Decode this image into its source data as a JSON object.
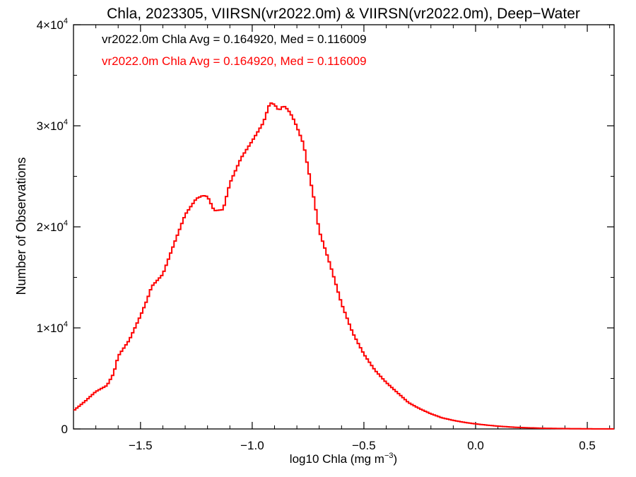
{
  "chart_data": {
    "type": "line",
    "title": "Chla, 2023305, VIIRSN(vr2022.0m) & VIIRSN(vr2022.0m), Deep−Water",
    "xlabel": "log10 Chla (mg m",
    "xlabel_sup": "−3",
    "xlabel_tail": ")",
    "ylabel": "Number of Observations",
    "xlim": [
      -1.8,
      0.62
    ],
    "ylim": [
      0,
      40000
    ],
    "grid": false,
    "x_ticks": [
      {
        "value": -1.5,
        "label": "−1.5"
      },
      {
        "value": -1.0,
        "label": "−1.0"
      },
      {
        "value": -0.5,
        "label": "−0.5"
      },
      {
        "value": 0.0,
        "label": "0.0"
      },
      {
        "value": 0.5,
        "label": "0.5"
      }
    ],
    "y_ticks": [
      {
        "value": 0,
        "mant": "0",
        "exp": ""
      },
      {
        "value": 10000,
        "mant": "1×10",
        "exp": "4"
      },
      {
        "value": 20000,
        "mant": "2×10",
        "exp": "4"
      },
      {
        "value": 30000,
        "mant": "3×10",
        "exp": "4"
      },
      {
        "value": 40000,
        "mant": "4×10",
        "exp": "4"
      }
    ],
    "annotations": [
      {
        "text": "vr2022.0m Chla Avg = 0.164920, Med = 0.116009",
        "color": "#000000"
      },
      {
        "text": "vr2022.0m Chla Avg = 0.164920, Med = 0.116009",
        "color": "#ff0000"
      }
    ],
    "series": [
      {
        "color": "#ff0000",
        "x": [
          -1.8,
          -1.75,
          -1.7,
          -1.65,
          -1.62,
          -1.6,
          -1.55,
          -1.5,
          -1.47,
          -1.45,
          -1.4,
          -1.35,
          -1.3,
          -1.25,
          -1.22,
          -1.2,
          -1.17,
          -1.13,
          -1.1,
          -1.05,
          -1.0,
          -0.95,
          -0.92,
          -0.9,
          -0.88,
          -0.86,
          -0.84,
          -0.82,
          -0.8,
          -0.77,
          -0.75,
          -0.72,
          -0.7,
          -0.65,
          -0.6,
          -0.55,
          -0.5,
          -0.45,
          -0.4,
          -0.35,
          -0.3,
          -0.25,
          -0.2,
          -0.15,
          -0.1,
          -0.05,
          0.0,
          0.05,
          0.1,
          0.15,
          0.2,
          0.3,
          0.4,
          0.5,
          0.62
        ],
        "values": [
          1800,
          2700,
          3700,
          4300,
          5500,
          7200,
          8800,
          11200,
          12800,
          14100,
          15300,
          18300,
          21200,
          22800,
          23100,
          23000,
          21600,
          21700,
          24300,
          26800,
          28500,
          30300,
          32300,
          32100,
          31500,
          32000,
          31600,
          30900,
          29900,
          28200,
          25800,
          22400,
          19600,
          16200,
          12400,
          9500,
          7400,
          5800,
          4600,
          3600,
          2600,
          2000,
          1500,
          1100,
          850,
          650,
          500,
          380,
          280,
          200,
          140,
          70,
          35,
          15,
          5
        ]
      }
    ]
  }
}
